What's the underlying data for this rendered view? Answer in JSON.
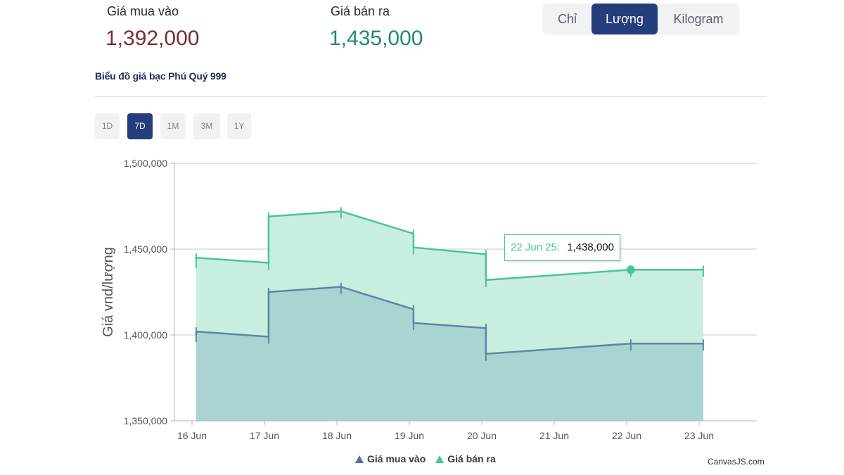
{
  "header": {
    "buy_label": "Giá mua vào",
    "buy_value": "1,392,000",
    "sell_label": "Giá bán ra",
    "sell_value": "1,435,000"
  },
  "unit_tabs": [
    {
      "label": "Chỉ",
      "active": false
    },
    {
      "label": "Lượng",
      "active": true
    },
    {
      "label": "Kilogram",
      "active": false
    }
  ],
  "chart_title": "Biểu đồ giá bạc Phú Quý 999",
  "range_tabs": [
    {
      "label": "1D",
      "active": false
    },
    {
      "label": "7D",
      "active": true
    },
    {
      "label": "1M",
      "active": false
    },
    {
      "label": "3M",
      "active": false
    },
    {
      "label": "1Y",
      "active": false
    }
  ],
  "tooltip": {
    "date": "22 Jun 25:",
    "value": "1,438,000"
  },
  "legend": {
    "buy": "Giá mua vào",
    "sell": "Giá bán ra"
  },
  "credit": "CanvasJS.com",
  "colors": {
    "buy_line": "#5f86a3",
    "buy_fill": "#a9d4d2",
    "sell_line": "#4cc39a",
    "sell_fill": "#c8eee0",
    "accent": "#243d7c"
  },
  "chart_data": {
    "type": "area",
    "ylabel": "Giá vnd/lượng",
    "xlabel": "",
    "ylim": [
      1350000,
      1500000
    ],
    "yticks": [
      1350000,
      1400000,
      1450000,
      1500000
    ],
    "ytick_labels": [
      "1,350,000",
      "1,400,000",
      "1,450,000",
      "1,500,000"
    ],
    "xticks": [
      "16 Jun",
      "17 Jun",
      "18 Jun",
      "19 Jun",
      "20 Jun",
      "21 Jun",
      "22 Jun",
      "23 Jun"
    ],
    "xlim_days": [
      16,
      24
    ],
    "series": [
      {
        "name": "Giá mua vào",
        "points": [
          {
            "x": 16.3,
            "open": 1400000,
            "close": 1402000
          },
          {
            "x": 17.3,
            "open": 1399000,
            "close": 1425000
          },
          {
            "x": 18.3,
            "open": 1428000,
            "close": 1428000
          },
          {
            "x": 19.3,
            "open": 1415000,
            "close": 1407000
          },
          {
            "x": 20.3,
            "open": 1404000,
            "close": 1389000
          },
          {
            "x": 22.3,
            "open": 1395000,
            "close": 1395000
          },
          {
            "x": 23.3,
            "open": 1395000,
            "close": 1395000
          }
        ]
      },
      {
        "name": "Giá bán ra",
        "points": [
          {
            "x": 16.3,
            "open": 1443000,
            "close": 1445000
          },
          {
            "x": 17.3,
            "open": 1442000,
            "close": 1469000
          },
          {
            "x": 18.3,
            "open": 1472000,
            "close": 1472000
          },
          {
            "x": 19.3,
            "open": 1459000,
            "close": 1451000
          },
          {
            "x": 20.3,
            "open": 1447000,
            "close": 1432000
          },
          {
            "x": 22.3,
            "open": 1438000,
            "close": 1438000
          },
          {
            "x": 23.3,
            "open": 1438000,
            "close": 1438000
          }
        ]
      }
    ],
    "highlight": {
      "series": "Giá bán ra",
      "x": 22.3,
      "y": 1438000
    }
  }
}
